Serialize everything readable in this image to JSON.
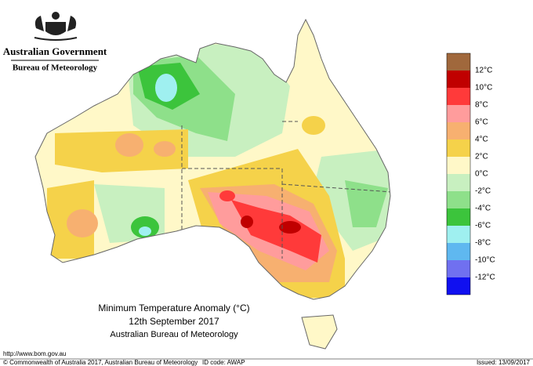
{
  "header": {
    "government": "Australian Government",
    "bureau": "Bureau of Meteorology"
  },
  "legend": {
    "colors": [
      "#a0683c",
      "#c00000",
      "#ff3a3a",
      "#ff9c9c",
      "#f7b070",
      "#f5d24a",
      "#fff8c8",
      "#c8f0c0",
      "#8ee08a",
      "#3cc43c",
      "#9ff0f0",
      "#5fb8f0",
      "#7070f0",
      "#1010f0"
    ],
    "labels": [
      "12°C",
      "10°C",
      "8°C",
      "6°C",
      "4°C",
      "2°C",
      "0°C",
      "-2°C",
      "-4°C",
      "-6°C",
      "-8°C",
      "-10°C",
      "-12°C"
    ]
  },
  "title": {
    "line1": "Minimum Temperature Anomaly (°C)",
    "line2": "12th September 2017",
    "line3": "Australian Bureau of Meteorology"
  },
  "footer": {
    "url": "http://www.bom.gov.au",
    "copyright": "© Commonwealth of Australia 2017, Australian Bureau of Meteorology",
    "id_code": "ID code: AWAP",
    "issued": "Issued: 13/09/2017"
  }
}
